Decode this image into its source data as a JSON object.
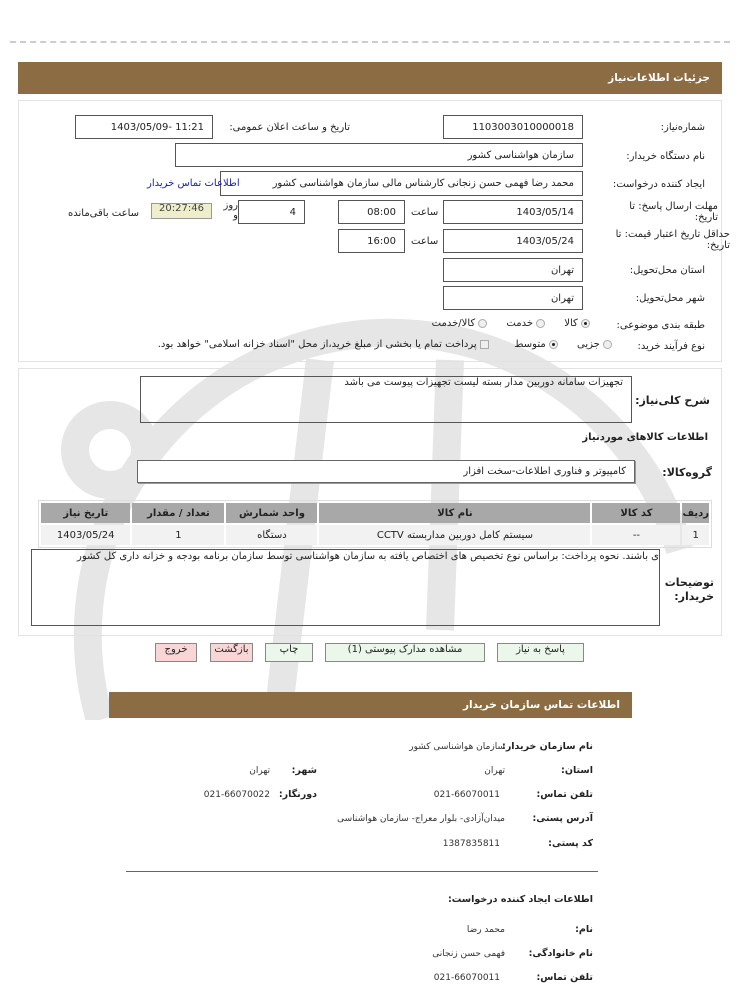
{
  "page_title": "جزئیات اطلاعات‌نیاز",
  "form": {
    "need_number_label": "شماره‌نیاز:",
    "need_number": "1103003010000018",
    "announce_label": "تاریخ و ساعت اعلان عمومی:",
    "announce_value": "1403/05/09- 11:21",
    "buyer_label": "نام دستگاه خریدار:",
    "buyer_value": "سازمان هواشناسی کشور",
    "creator_label": "ایجاد کننده درخواست:",
    "creator_value": "محمد رضا فهمی حسن زنجانی کارشناس مالی سازمان هواشناسی کشور",
    "contact_link": "اطلاعات تماس خریدار",
    "deadline_label": "مهلت ارسال پاسخ: تا تاریخ:",
    "deadline_date": "1403/05/14",
    "time_label": "ساعت",
    "deadline_time": "08:00",
    "days_value": "4",
    "days_label": "روز و",
    "timer": "20:27:46",
    "remaining_label": "ساعت باقی‌مانده",
    "validity_label": "حداقل تاریخ اعتبار قیمت: تا تاریخ:",
    "validity_date": "1403/05/24",
    "validity_time": "16:00",
    "province_label": "استان محل‌تحویل:",
    "province": "تهران",
    "city_label": "شهر محل‌تحویل:",
    "city": "تهران",
    "category_label": "طبقه بندی موضوعی:",
    "category_options": [
      "کالا",
      "خدمت",
      "کالا/خدمت"
    ],
    "category_selected": "کالا",
    "process_label": "نوع فرآیند خرید:",
    "process_options": [
      "جزیی",
      "متوسط"
    ],
    "process_selected": "متوسط",
    "treasury_note": "پرداخت تمام یا بخشی از مبلغ خرید،از محل \"اسناد خزانه اسلامی\" خواهد بود."
  },
  "goods": {
    "desc_label": "شرح کلی‌نیاز:",
    "desc_value": "تجهیزات سامانه دوربین مدار بسته لیست تجهیزات پیوست می باشد",
    "section_title": "اطلاعات کالاهای موردنیاز",
    "group_label": "گروه‌کالا:",
    "group_value": "کامپیوتر و فناوری اطلاعات-سخت افزار",
    "columns": [
      "ردیف",
      "کد کالا",
      "نام کالا",
      "واحد شمارش",
      "تعداد / مقدار",
      "تاریخ نیاز"
    ],
    "rows": [
      [
        "1",
        "--",
        "سیستم کامل دوربین مداربسته CCTV",
        "دستگاه",
        "1",
        "1403/05/24"
      ]
    ],
    "notes_label": "توضیحات خریدار:",
    "notes_value": "ی باشند. نحوه پرداخت: براساس نوع تخصیص های اختصاص یافته به سازمان هواشناسی توسط سازمان برنامه بودجه و خزانه داری کل کشور"
  },
  "buttons": {
    "reply": "پاسخ به نیاز",
    "attachments": "مشاهده مدارک پیوستی (1)",
    "print": "چاپ",
    "back": "بازگشت",
    "exit": "خروج"
  },
  "contact": {
    "title": "اطلاعات تماس سازمان خریدار",
    "org_label": "نام سازمان خریدار:",
    "org": "سازمان هواشناسی کشور",
    "province_label": "استان:",
    "province": "تهران",
    "city_label": "شهر:",
    "city": "تهران",
    "phone_label": "تلفن تماس:",
    "phone": "021-66070011",
    "fax_label": "دورنگار:",
    "fax": "021-66070022",
    "address_label": "آدرس پستی:",
    "address": "میدان‌آزادی- بلوار معراج- سازمان هواشناسی",
    "postal_label": "کد پستی:",
    "postal": "1387835811",
    "creator_title": "اطلاعات ایجاد کننده درخواست:",
    "first_name_label": "نام:",
    "first_name": "محمد رضا",
    "last_name_label": "نام خانوادگی:",
    "last_name": "فهمی حسن زنجانی",
    "creator_phone_label": "تلفن تماس:",
    "creator_phone": "021-66070011"
  }
}
